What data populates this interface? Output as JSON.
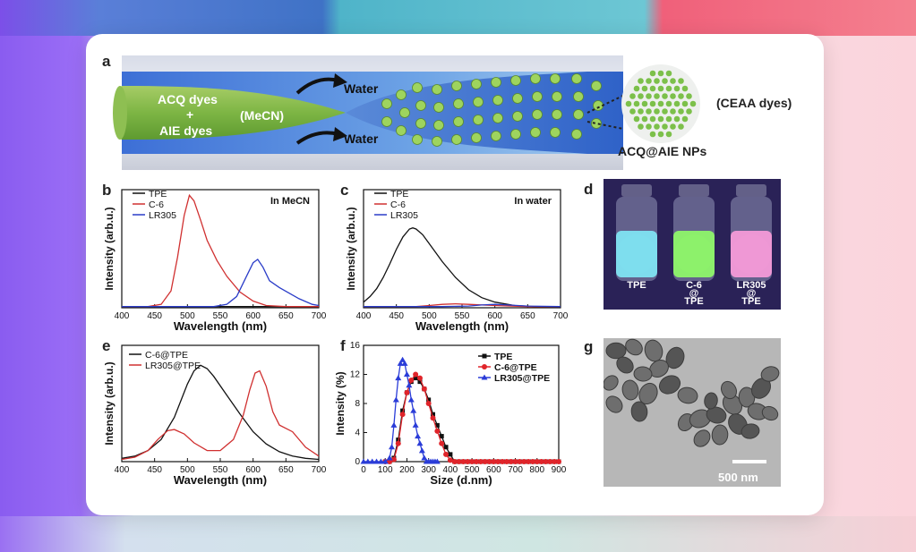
{
  "panel_a": {
    "label": "a",
    "left_label_1": "ACQ dyes",
    "left_label_2": "+",
    "left_label_3": "AIE dyes",
    "solvent": "(MeCN)",
    "water_top": "Water",
    "water_bottom": "Water",
    "zoom_label": "(CEAA dyes)",
    "np_label": "ACQ@AIE NPs"
  },
  "panel_d": {
    "label": "d",
    "vials": [
      "TPE",
      "C-6\n@\nTPE",
      "LR305\n@\nTPE"
    ],
    "vial_colors": [
      "#7fe3f2",
      "#8ef56a",
      "#f49ad8"
    ]
  },
  "panel_g": {
    "label": "g",
    "scale_bar": "500 nm"
  },
  "chart_data": [
    {
      "panel": "b",
      "type": "line",
      "annotation": "In MeCN",
      "xlabel": "Wavelength (nm)",
      "ylabel": "Intensity (arb.u.)",
      "xlim": [
        400,
        700
      ],
      "ylim": [
        0,
        1.05
      ],
      "xticks": [
        "400",
        "450",
        "500",
        "550",
        "600",
        "650",
        "700"
      ],
      "series": [
        {
          "name": "TPE",
          "color": "#111111",
          "x": [
            400,
            450,
            500,
            550,
            600,
            650,
            700
          ],
          "y": [
            0.01,
            0.01,
            0.01,
            0.01,
            0.01,
            0.01,
            0.01
          ]
        },
        {
          "name": "C-6",
          "color": "#d03030",
          "x": [
            400,
            440,
            460,
            475,
            485,
            495,
            503,
            510,
            520,
            530,
            545,
            560,
            580,
            600,
            620,
            650,
            700
          ],
          "y": [
            0.01,
            0.01,
            0.03,
            0.15,
            0.45,
            0.82,
            1.0,
            0.95,
            0.78,
            0.6,
            0.42,
            0.28,
            0.14,
            0.06,
            0.02,
            0.01,
            0.01
          ]
        },
        {
          "name": "LR305",
          "color": "#2a3cc8",
          "x": [
            400,
            540,
            560,
            575,
            590,
            600,
            607,
            615,
            625,
            640,
            655,
            670,
            690,
            700
          ],
          "y": [
            0.01,
            0.01,
            0.03,
            0.1,
            0.28,
            0.4,
            0.43,
            0.36,
            0.24,
            0.18,
            0.13,
            0.08,
            0.03,
            0.02
          ]
        }
      ]
    },
    {
      "panel": "c",
      "type": "line",
      "annotation": "In water",
      "xlabel": "Wavelength (nm)",
      "ylabel": "Intensity (arb.u.)",
      "xlim": [
        400,
        700
      ],
      "ylim": [
        0,
        1.05
      ],
      "xticks": [
        "400",
        "450",
        "500",
        "550",
        "600",
        "650",
        "700"
      ],
      "series": [
        {
          "name": "TPE",
          "color": "#111111",
          "x": [
            400,
            410,
            420,
            430,
            440,
            450,
            460,
            470,
            475,
            480,
            490,
            500,
            520,
            540,
            560,
            580,
            600,
            630,
            660,
            700
          ],
          "y": [
            0.05,
            0.1,
            0.17,
            0.27,
            0.39,
            0.52,
            0.63,
            0.7,
            0.71,
            0.7,
            0.65,
            0.57,
            0.41,
            0.27,
            0.16,
            0.09,
            0.05,
            0.02,
            0.01,
            0.01
          ]
        },
        {
          "name": "C-6",
          "color": "#d03030",
          "x": [
            400,
            480,
            500,
            520,
            540,
            560,
            600,
            650,
            700
          ],
          "y": [
            0.01,
            0.01,
            0.02,
            0.03,
            0.035,
            0.03,
            0.02,
            0.01,
            0.01
          ]
        },
        {
          "name": "LR305",
          "color": "#2a3cc8",
          "x": [
            400,
            520,
            560,
            580,
            600,
            620,
            650,
            700
          ],
          "y": [
            0.01,
            0.01,
            0.015,
            0.025,
            0.03,
            0.025,
            0.015,
            0.01
          ]
        }
      ]
    },
    {
      "panel": "e",
      "type": "line",
      "xlabel": "Wavelength (nm)",
      "ylabel": "Intensity (arb.u.)",
      "xlim": [
        400,
        700
      ],
      "ylim": [
        0,
        1.05
      ],
      "xticks": [
        "400",
        "450",
        "500",
        "550",
        "600",
        "650",
        "700"
      ],
      "series": [
        {
          "name": "C-6@TPE",
          "color": "#111111",
          "x": [
            400,
            420,
            440,
            460,
            480,
            500,
            510,
            520,
            530,
            540,
            560,
            580,
            600,
            620,
            640,
            660,
            680,
            700
          ],
          "y": [
            0.03,
            0.05,
            0.1,
            0.2,
            0.4,
            0.7,
            0.82,
            0.87,
            0.84,
            0.77,
            0.6,
            0.43,
            0.27,
            0.16,
            0.09,
            0.05,
            0.03,
            0.02
          ]
        },
        {
          "name": "LR305@TPE",
          "color": "#d03030",
          "x": [
            400,
            420,
            440,
            455,
            470,
            480,
            495,
            510,
            530,
            550,
            570,
            585,
            595,
            603,
            610,
            620,
            630,
            640,
            660,
            680,
            700
          ],
          "y": [
            0.02,
            0.04,
            0.1,
            0.2,
            0.28,
            0.29,
            0.25,
            0.17,
            0.1,
            0.1,
            0.2,
            0.42,
            0.65,
            0.8,
            0.82,
            0.68,
            0.45,
            0.33,
            0.27,
            0.13,
            0.05
          ]
        }
      ]
    },
    {
      "panel": "f",
      "type": "scatter",
      "xlabel": "Size (d.nm)",
      "ylabel": "Intensity (%)",
      "xlim": [
        0,
        900
      ],
      "ylim": [
        0,
        16
      ],
      "xticks": [
        "0",
        "100",
        "200",
        "300",
        "400",
        "500",
        "600",
        "700",
        "800",
        "900"
      ],
      "yticks": [
        "0",
        "4",
        "8",
        "12",
        "16"
      ],
      "series": [
        {
          "name": "TPE",
          "color": "#111111",
          "marker": "square",
          "x": [
            100,
            120,
            140,
            160,
            180,
            200,
            220,
            240,
            260,
            280,
            300,
            320,
            340,
            360,
            380,
            400,
            420,
            440,
            460,
            480,
            500,
            520,
            540,
            560,
            580,
            600,
            620,
            640,
            660,
            680,
            700,
            720,
            740,
            760,
            780,
            800,
            820,
            840,
            860,
            880,
            900
          ],
          "y": [
            0,
            0,
            0.5,
            3,
            7,
            9.5,
            11,
            11.5,
            11,
            10,
            8.5,
            6.5,
            5,
            3.5,
            2,
            1,
            0,
            0,
            0,
            0,
            0,
            0,
            0,
            0,
            0,
            0,
            0,
            0,
            0,
            0,
            0,
            0,
            0,
            0,
            0,
            0,
            0,
            0,
            0,
            0,
            0
          ]
        },
        {
          "name": "C-6@TPE",
          "color": "#e0242a",
          "marker": "circle",
          "x": [
            100,
            120,
            140,
            160,
            180,
            200,
            220,
            240,
            260,
            280,
            300,
            320,
            340,
            360,
            380,
            400,
            420,
            440,
            460,
            480,
            500,
            520,
            540,
            560,
            580,
            600,
            620,
            640,
            660,
            680,
            700,
            720,
            740,
            760,
            780,
            800,
            820,
            840,
            860,
            880,
            900
          ],
          "y": [
            0,
            0,
            0.3,
            2.5,
            6.5,
            9.5,
            11.2,
            12,
            11.5,
            10,
            8,
            6,
            4.2,
            2.5,
            1,
            0.2,
            0,
            0,
            0,
            0,
            0,
            0,
            0,
            0,
            0,
            0,
            0,
            0,
            0,
            0,
            0,
            0,
            0,
            0,
            0,
            0,
            0,
            0,
            0,
            0,
            0
          ]
        },
        {
          "name": "LR305@TPE",
          "color": "#2a3cd8",
          "marker": "triangle",
          "x": [
            0,
            20,
            40,
            60,
            80,
            100,
            120,
            130,
            140,
            150,
            160,
            170,
            180,
            190,
            200,
            210,
            220,
            230,
            240,
            250,
            260,
            270,
            280,
            290,
            300,
            310,
            320,
            330,
            340
          ],
          "y": [
            0,
            0,
            0,
            0,
            0,
            0,
            0.5,
            2,
            5,
            8.5,
            11.5,
            13.5,
            14,
            13.5,
            12,
            10.5,
            8.5,
            7,
            5,
            3.5,
            2.5,
            1.5,
            0.5,
            0,
            0,
            0,
            0,
            0,
            0
          ]
        }
      ]
    }
  ]
}
